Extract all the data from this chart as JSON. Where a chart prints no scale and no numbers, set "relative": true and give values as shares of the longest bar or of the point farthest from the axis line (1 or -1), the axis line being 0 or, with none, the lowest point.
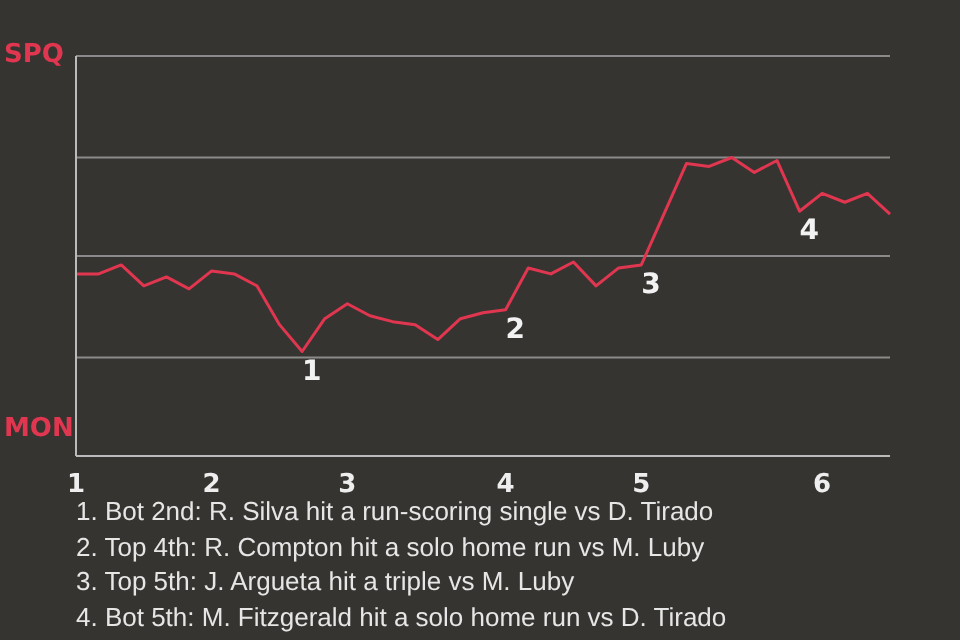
{
  "chart_data": {
    "type": "line",
    "relative": true,
    "categories": [
      "1",
      null,
      null,
      null,
      null,
      null,
      "2",
      null,
      null,
      null,
      null,
      null,
      "3",
      null,
      null,
      null,
      null,
      null,
      null,
      "4",
      null,
      null,
      null,
      null,
      null,
      "5",
      null,
      null,
      null,
      null,
      null,
      null,
      null,
      "6",
      null,
      null,
      null
    ],
    "series": [
      {
        "color": "#e0364f",
        "values": [
          0.61,
          0.61,
          0.64,
          0.57,
          0.6,
          0.56,
          0.62,
          0.61,
          0.57,
          0.44,
          0.35,
          0.46,
          0.51,
          0.47,
          0.45,
          0.44,
          0.39,
          0.46,
          0.48,
          0.49,
          0.63,
          0.61,
          0.65,
          0.57,
          0.63,
          0.64,
          0.81,
          0.98,
          0.97,
          1,
          0.95,
          0.99,
          0.82,
          0.88,
          0.85,
          0.88,
          0.81
        ]
      }
    ],
    "ref_lines": [
      {
        "axis": "y",
        "value": 0.33,
        "color": "#8a8a8a"
      },
      {
        "axis": "y",
        "value": 0.67,
        "color": "#8a8a8a"
      },
      {
        "axis": "y",
        "value": 1,
        "color": "#8a8a8a"
      },
      {
        "axis": "y",
        "value": 1.34,
        "color": "#8a8a8a"
      }
    ],
    "legend": false,
    "marker": "none",
    "annotations": [
      "SPQ",
      "MON",
      {
        "text": "1",
        "y": 0.35
      },
      {
        "text": "2",
        "y": 0.49
      },
      {
        "text": "3",
        "y": 0.64
      },
      {
        "text": "4",
        "y": 0.82
      },
      "1. Bot 2nd: R. Silva hit a run-scoring single vs D. Tirado",
      "2. Top 4th: R. Compton hit a solo home run vs M. Luby",
      "3. Top 5th: J. Argueta hit a triple vs M. Luby",
      "4. Bot 5th: M. Fitzgerald hit a solo home run vs D. Tirado"
    ]
  }
}
